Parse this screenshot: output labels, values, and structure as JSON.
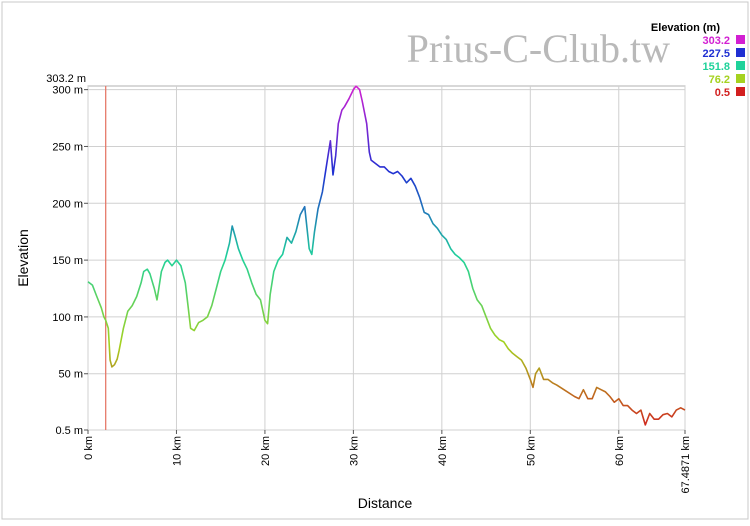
{
  "chart_data": {
    "type": "line",
    "watermark": "Prius-C-Club.tw",
    "xlabel": "Distance",
    "ylabel": "Elevation",
    "xlim": [
      0,
      67.4871
    ],
    "ylim": [
      0.5,
      303.2
    ],
    "x_ticks": [
      0,
      10,
      20,
      30,
      40,
      50,
      60,
      67.4871
    ],
    "x_tick_labels": [
      "0 km",
      "10 km",
      "20 km",
      "30 km",
      "40 km",
      "50 km",
      "60 km",
      "67.4871 km"
    ],
    "y_ticks": [
      0.5,
      50,
      100,
      150,
      200,
      250,
      300
    ],
    "y_tick_labels": [
      "0.5 m",
      "50 m",
      "100 m",
      "150 m",
      "200 m",
      "250 m",
      "300 m"
    ],
    "y_max_label": "303.2 m",
    "grid": true,
    "marker_x": 2.0,
    "legend": {
      "title": "Elevation (m)",
      "placement": "top-right",
      "entries": [
        {
          "label": "303.2",
          "color": "#d21fd2"
        },
        {
          "label": "227.5",
          "color": "#1f2fd2"
        },
        {
          "label": "151.8",
          "color": "#1fd29a"
        },
        {
          "label": "76.2",
          "color": "#a5d21f"
        },
        {
          "label": "0.5",
          "color": "#d21f1f"
        }
      ]
    },
    "series": [
      {
        "points": [
          [
            0.0,
            131
          ],
          [
            0.5,
            128
          ],
          [
            1.0,
            118
          ],
          [
            1.5,
            108
          ],
          [
            1.8,
            100
          ],
          [
            2.0,
            97
          ],
          [
            2.3,
            90
          ],
          [
            2.5,
            62
          ],
          [
            2.7,
            56
          ],
          [
            3.0,
            58
          ],
          [
            3.3,
            63
          ],
          [
            3.5,
            70
          ],
          [
            4.0,
            90
          ],
          [
            4.5,
            105
          ],
          [
            5.0,
            110
          ],
          [
            5.5,
            118
          ],
          [
            6.0,
            130
          ],
          [
            6.3,
            140
          ],
          [
            6.7,
            142
          ],
          [
            7.0,
            138
          ],
          [
            7.5,
            125
          ],
          [
            7.8,
            115
          ],
          [
            8.0,
            125
          ],
          [
            8.3,
            140
          ],
          [
            8.7,
            148
          ],
          [
            9.0,
            150
          ],
          [
            9.5,
            145
          ],
          [
            10.0,
            150
          ],
          [
            10.5,
            145
          ],
          [
            11.0,
            130
          ],
          [
            11.3,
            110
          ],
          [
            11.6,
            90
          ],
          [
            12.0,
            88
          ],
          [
            12.5,
            95
          ],
          [
            13.0,
            97
          ],
          [
            13.5,
            100
          ],
          [
            14.0,
            110
          ],
          [
            14.5,
            125
          ],
          [
            15.0,
            140
          ],
          [
            15.5,
            150
          ],
          [
            16.0,
            165
          ],
          [
            16.3,
            180
          ],
          [
            16.6,
            172
          ],
          [
            17.0,
            160
          ],
          [
            17.5,
            150
          ],
          [
            18.0,
            142
          ],
          [
            18.5,
            130
          ],
          [
            19.0,
            120
          ],
          [
            19.5,
            115
          ],
          [
            20.0,
            97
          ],
          [
            20.3,
            94
          ],
          [
            20.6,
            120
          ],
          [
            21.0,
            140
          ],
          [
            21.5,
            150
          ],
          [
            22.0,
            155
          ],
          [
            22.5,
            170
          ],
          [
            23.0,
            165
          ],
          [
            23.5,
            175
          ],
          [
            24.0,
            190
          ],
          [
            24.5,
            197
          ],
          [
            25.0,
            160
          ],
          [
            25.3,
            155
          ],
          [
            25.6,
            175
          ],
          [
            26.0,
            195
          ],
          [
            26.5,
            210
          ],
          [
            27.0,
            235
          ],
          [
            27.4,
            255
          ],
          [
            27.7,
            225
          ],
          [
            28.0,
            242
          ],
          [
            28.3,
            270
          ],
          [
            28.7,
            282
          ],
          [
            29.0,
            285
          ],
          [
            29.5,
            292
          ],
          [
            30.0,
            300
          ],
          [
            30.3,
            303
          ],
          [
            30.7,
            300
          ],
          [
            31.0,
            290
          ],
          [
            31.5,
            270
          ],
          [
            31.8,
            245
          ],
          [
            32.0,
            238
          ],
          [
            32.5,
            235
          ],
          [
            33.0,
            232
          ],
          [
            33.5,
            232
          ],
          [
            34.0,
            228
          ],
          [
            34.5,
            226
          ],
          [
            35.0,
            228
          ],
          [
            35.5,
            224
          ],
          [
            36.0,
            218
          ],
          [
            36.5,
            222
          ],
          [
            37.0,
            215
          ],
          [
            37.5,
            205
          ],
          [
            38.0,
            192
          ],
          [
            38.5,
            190
          ],
          [
            39.0,
            182
          ],
          [
            39.5,
            178
          ],
          [
            40.0,
            172
          ],
          [
            40.5,
            168
          ],
          [
            41.0,
            160
          ],
          [
            41.5,
            155
          ],
          [
            42.0,
            152
          ],
          [
            42.5,
            148
          ],
          [
            43.0,
            140
          ],
          [
            43.5,
            125
          ],
          [
            44.0,
            115
          ],
          [
            44.5,
            110
          ],
          [
            45.0,
            100
          ],
          [
            45.5,
            90
          ],
          [
            46.0,
            84
          ],
          [
            46.5,
            80
          ],
          [
            47.0,
            78
          ],
          [
            47.5,
            72
          ],
          [
            48.0,
            68
          ],
          [
            48.5,
            65
          ],
          [
            49.0,
            62
          ],
          [
            49.5,
            55
          ],
          [
            50.0,
            45
          ],
          [
            50.3,
            38
          ],
          [
            50.6,
            50
          ],
          [
            51.0,
            55
          ],
          [
            51.5,
            45
          ],
          [
            52.0,
            45
          ],
          [
            52.5,
            42
          ],
          [
            53.0,
            40
          ],
          [
            54.0,
            35
          ],
          [
            55.0,
            30
          ],
          [
            55.5,
            28
          ],
          [
            56.0,
            36
          ],
          [
            56.5,
            28
          ],
          [
            57.0,
            28
          ],
          [
            57.5,
            38
          ],
          [
            58.0,
            36
          ],
          [
            58.5,
            34
          ],
          [
            59.0,
            30
          ],
          [
            59.5,
            25
          ],
          [
            60.0,
            28
          ],
          [
            60.5,
            22
          ],
          [
            61.0,
            22
          ],
          [
            61.5,
            18
          ],
          [
            62.0,
            15
          ],
          [
            62.5,
            18
          ],
          [
            63.0,
            5
          ],
          [
            63.5,
            15
          ],
          [
            64.0,
            10
          ],
          [
            64.5,
            10
          ],
          [
            65.0,
            14
          ],
          [
            65.5,
            15
          ],
          [
            66.0,
            12
          ],
          [
            66.5,
            18
          ],
          [
            67.0,
            20
          ],
          [
            67.4871,
            18
          ]
        ]
      }
    ]
  }
}
